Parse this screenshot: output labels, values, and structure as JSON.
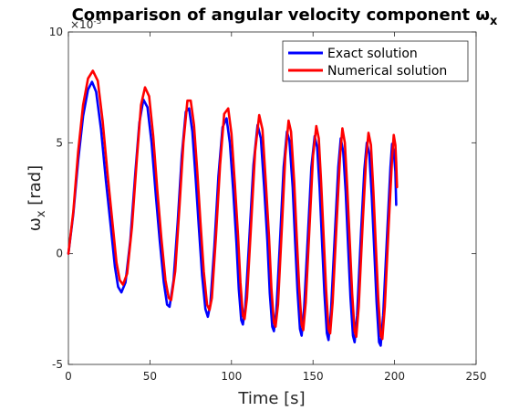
{
  "chart_data": {
    "type": "line",
    "title": "Comparison of angular velocity component ω",
    "title_subscript": "x",
    "xlabel": "Time [s]",
    "ylabel": "ω",
    "ylabel_subscript": "x",
    "ylabel_unit": " [rad]",
    "y_exponent_base": "×10",
    "y_exponent_power": "-3",
    "xlim": [
      0,
      250
    ],
    "ylim": [
      -5,
      10
    ],
    "x_ticks": [
      "0",
      "50",
      "100",
      "150",
      "200",
      "250"
    ],
    "y_ticks": [
      "-5",
      "0",
      "5",
      "10"
    ],
    "grid": false,
    "legend_position": "top-right",
    "series": [
      {
        "name": "Exact solution",
        "color": "#0000ff",
        "points": [
          [
            0,
            0
          ],
          [
            3,
            1.8
          ],
          [
            6,
            4.2
          ],
          [
            9,
            6.2
          ],
          [
            12,
            7.4
          ],
          [
            14.5,
            7.75
          ],
          [
            17,
            7.3
          ],
          [
            20,
            5.6
          ],
          [
            23,
            3.3
          ],
          [
            26,
            1.2
          ],
          [
            28.5,
            -0.6
          ],
          [
            30.5,
            -1.5
          ],
          [
            32.5,
            -1.75
          ],
          [
            35,
            -1.3
          ],
          [
            38,
            0.6
          ],
          [
            41,
            3.6
          ],
          [
            43.5,
            5.9
          ],
          [
            46,
            6.95
          ],
          [
            48.5,
            6.6
          ],
          [
            51,
            5.0
          ],
          [
            53.5,
            2.7
          ],
          [
            56,
            0.6
          ],
          [
            58.5,
            -1.3
          ],
          [
            60.5,
            -2.3
          ],
          [
            62,
            -2.4
          ],
          [
            64.5,
            -1.2
          ],
          [
            67,
            1.4
          ],
          [
            69.5,
            4.4
          ],
          [
            72,
            6.4
          ],
          [
            74,
            6.55
          ],
          [
            76,
            5.5
          ],
          [
            78,
            3.4
          ],
          [
            80,
            1.2
          ],
          [
            82,
            -1.0
          ],
          [
            84,
            -2.5
          ],
          [
            85.5,
            -2.85
          ],
          [
            87,
            -2.3
          ],
          [
            89.5,
            0.3
          ],
          [
            92,
            3.5
          ],
          [
            94.5,
            5.7
          ],
          [
            97,
            6.1
          ],
          [
            99,
            5.0
          ],
          [
            101,
            2.9
          ],
          [
            103,
            0.5
          ],
          [
            104.5,
            -1.6
          ],
          [
            106,
            -3.0
          ],
          [
            107,
            -3.2
          ],
          [
            108.5,
            -2.4
          ],
          [
            111,
            0.8
          ],
          [
            113.5,
            4.0
          ],
          [
            116,
            5.8
          ],
          [
            118,
            5.2
          ],
          [
            120,
            3.0
          ],
          [
            122,
            0.6
          ],
          [
            123.5,
            -1.8
          ],
          [
            125,
            -3.3
          ],
          [
            126,
            -3.5
          ],
          [
            127.5,
            -2.6
          ],
          [
            130,
            0.9
          ],
          [
            132,
            3.9
          ],
          [
            134,
            5.5
          ],
          [
            135.5,
            5.1
          ],
          [
            137.5,
            3.0
          ],
          [
            139,
            0.6
          ],
          [
            140.5,
            -1.7
          ],
          [
            142,
            -3.4
          ],
          [
            143,
            -3.7
          ],
          [
            144.5,
            -2.5
          ],
          [
            147,
            1.0
          ],
          [
            149,
            3.9
          ],
          [
            151,
            5.3
          ],
          [
            152.5,
            4.8
          ],
          [
            154,
            3.0
          ],
          [
            155.5,
            0.6
          ],
          [
            157,
            -1.8
          ],
          [
            158.5,
            -3.6
          ],
          [
            159.5,
            -3.9
          ],
          [
            161,
            -2.6
          ],
          [
            163.5,
            1.0
          ],
          [
            165.5,
            3.9
          ],
          [
            167,
            5.2
          ],
          [
            168.5,
            4.6
          ],
          [
            170,
            2.8
          ],
          [
            171.5,
            0.4
          ],
          [
            173,
            -2.0
          ],
          [
            174.5,
            -3.7
          ],
          [
            175.5,
            -4.0
          ],
          [
            177,
            -2.8
          ],
          [
            179.5,
            1.0
          ],
          [
            181.5,
            3.8
          ],
          [
            183,
            5.0
          ],
          [
            184.5,
            4.5
          ],
          [
            186,
            2.6
          ],
          [
            187.5,
            0.2
          ],
          [
            189,
            -2.2
          ],
          [
            190.5,
            -4.0
          ],
          [
            191.5,
            -4.15
          ],
          [
            193,
            -2.8
          ],
          [
            195.5,
            1.0
          ],
          [
            197.5,
            3.9
          ],
          [
            198.5,
            4.95
          ],
          [
            199.5,
            4.6
          ],
          [
            200.5,
            3.7
          ],
          [
            201,
            2.2
          ]
        ]
      },
      {
        "name": "Numerical solution",
        "color": "#ff0000",
        "points": [
          [
            0,
            0
          ],
          [
            3,
            1.9
          ],
          [
            6,
            4.6
          ],
          [
            9,
            6.7
          ],
          [
            12,
            7.9
          ],
          [
            15,
            8.25
          ],
          [
            18,
            7.8
          ],
          [
            21,
            6.0
          ],
          [
            24,
            3.6
          ],
          [
            27,
            1.4
          ],
          [
            29.5,
            -0.4
          ],
          [
            31.5,
            -1.2
          ],
          [
            33.5,
            -1.4
          ],
          [
            36,
            -0.9
          ],
          [
            39,
            1.2
          ],
          [
            42,
            4.3
          ],
          [
            44.5,
            6.7
          ],
          [
            47,
            7.5
          ],
          [
            49.5,
            7.1
          ],
          [
            52,
            5.3
          ],
          [
            54.5,
            2.9
          ],
          [
            57,
            0.7
          ],
          [
            59.5,
            -1.2
          ],
          [
            61.5,
            -2.0
          ],
          [
            63,
            -2.1
          ],
          [
            65.5,
            -0.8
          ],
          [
            68,
            2.0
          ],
          [
            70.5,
            5.0
          ],
          [
            73,
            6.9
          ],
          [
            75,
            6.9
          ],
          [
            77,
            5.8
          ],
          [
            79,
            3.7
          ],
          [
            81,
            1.4
          ],
          [
            83,
            -0.8
          ],
          [
            85,
            -2.3
          ],
          [
            86.5,
            -2.55
          ],
          [
            88,
            -2.0
          ],
          [
            90.5,
            0.8
          ],
          [
            93,
            4.0
          ],
          [
            95.5,
            6.3
          ],
          [
            98,
            6.55
          ],
          [
            100,
            5.4
          ],
          [
            102,
            3.2
          ],
          [
            104,
            0.8
          ],
          [
            105.5,
            -1.3
          ],
          [
            107,
            -2.8
          ],
          [
            108,
            -2.95
          ],
          [
            109.5,
            -2.0
          ],
          [
            112,
            1.3
          ],
          [
            114.5,
            4.6
          ],
          [
            117,
            6.25
          ],
          [
            119,
            5.6
          ],
          [
            121,
            3.3
          ],
          [
            123,
            0.8
          ],
          [
            124.5,
            -1.6
          ],
          [
            126,
            -3.1
          ],
          [
            127,
            -3.3
          ],
          [
            128.5,
            -2.3
          ],
          [
            131,
            1.3
          ],
          [
            133,
            4.4
          ],
          [
            135,
            6.0
          ],
          [
            136.5,
            5.5
          ],
          [
            138.5,
            3.2
          ],
          [
            140,
            0.8
          ],
          [
            141.5,
            -1.5
          ],
          [
            143,
            -3.2
          ],
          [
            144,
            -3.45
          ],
          [
            145.5,
            -2.2
          ],
          [
            148,
            1.4
          ],
          [
            150,
            4.4
          ],
          [
            152,
            5.75
          ],
          [
            153.5,
            5.2
          ],
          [
            155,
            3.2
          ],
          [
            156.5,
            0.8
          ],
          [
            158,
            -1.6
          ],
          [
            159.5,
            -3.4
          ],
          [
            160.5,
            -3.6
          ],
          [
            162,
            -2.2
          ],
          [
            164.5,
            1.4
          ],
          [
            166.5,
            4.3
          ],
          [
            168,
            5.65
          ],
          [
            169.5,
            5.0
          ],
          [
            171,
            3.0
          ],
          [
            172.5,
            0.6
          ],
          [
            174,
            -1.8
          ],
          [
            175.5,
            -3.5
          ],
          [
            176.5,
            -3.75
          ],
          [
            178,
            -2.4
          ],
          [
            180.5,
            1.4
          ],
          [
            182.5,
            4.2
          ],
          [
            184,
            5.45
          ],
          [
            185.5,
            4.9
          ],
          [
            187,
            2.8
          ],
          [
            188.5,
            0.4
          ],
          [
            190,
            -2.0
          ],
          [
            191.5,
            -3.7
          ],
          [
            192.5,
            -3.85
          ],
          [
            194,
            -2.4
          ],
          [
            196.5,
            1.4
          ],
          [
            198.5,
            4.3
          ],
          [
            199.5,
            5.35
          ],
          [
            200.5,
            4.9
          ],
          [
            201,
            4.1
          ],
          [
            201.5,
            3.0
          ]
        ]
      }
    ]
  }
}
